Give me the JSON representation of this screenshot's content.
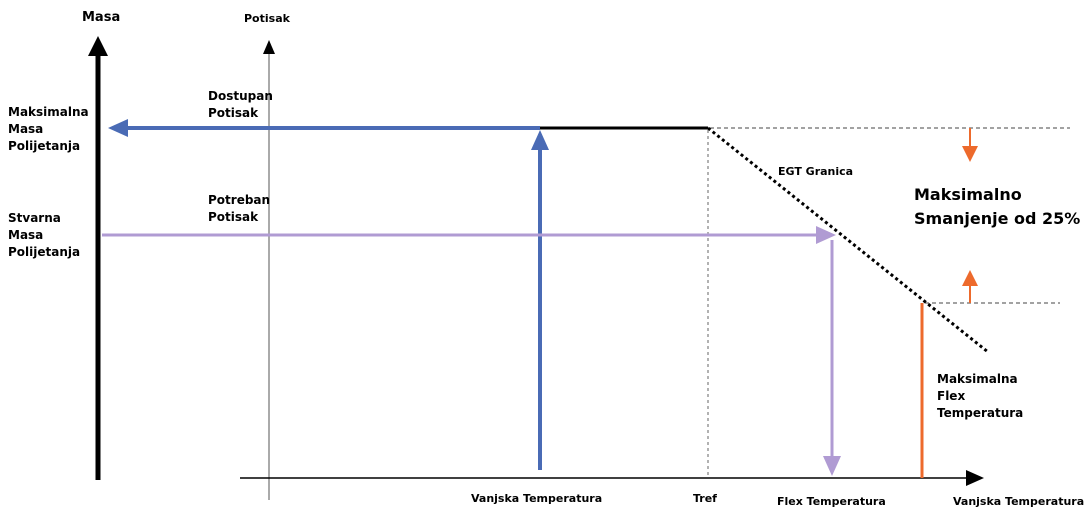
{
  "axes": {
    "mass_axis_label": "Masa",
    "thrust_axis_label": "Potisak"
  },
  "left_labels": {
    "max_takeoff_mass": [
      "Maksimalna",
      "Masa",
      "Polijetanja"
    ],
    "actual_takeoff_mass": [
      "Stvarna",
      "Masa",
      "Polijetanja"
    ]
  },
  "thrust_labels": {
    "available_thrust": [
      "Dostupan",
      "Potisak"
    ],
    "required_thrust": [
      "Potreban",
      "Potisak"
    ]
  },
  "curve_labels": {
    "egt_limit": "EGT Granica"
  },
  "reduction_note": [
    "Maksimalno",
    "Smanjenje od 25%"
  ],
  "max_flex_temp_label": [
    "Maksimalna",
    "Flex",
    "Temperatura"
  ],
  "bottom_labels": {
    "outside_temp_1": "Vanjska Temperatura",
    "tref": "Tref",
    "flex_temp": "Flex Temperatura",
    "outside_temp_2": "Vanjska Temperatura"
  },
  "colors": {
    "blue": "#4a6bb5",
    "purple": "#b09bd3",
    "orange": "#ed6a2c",
    "black": "#000000"
  }
}
